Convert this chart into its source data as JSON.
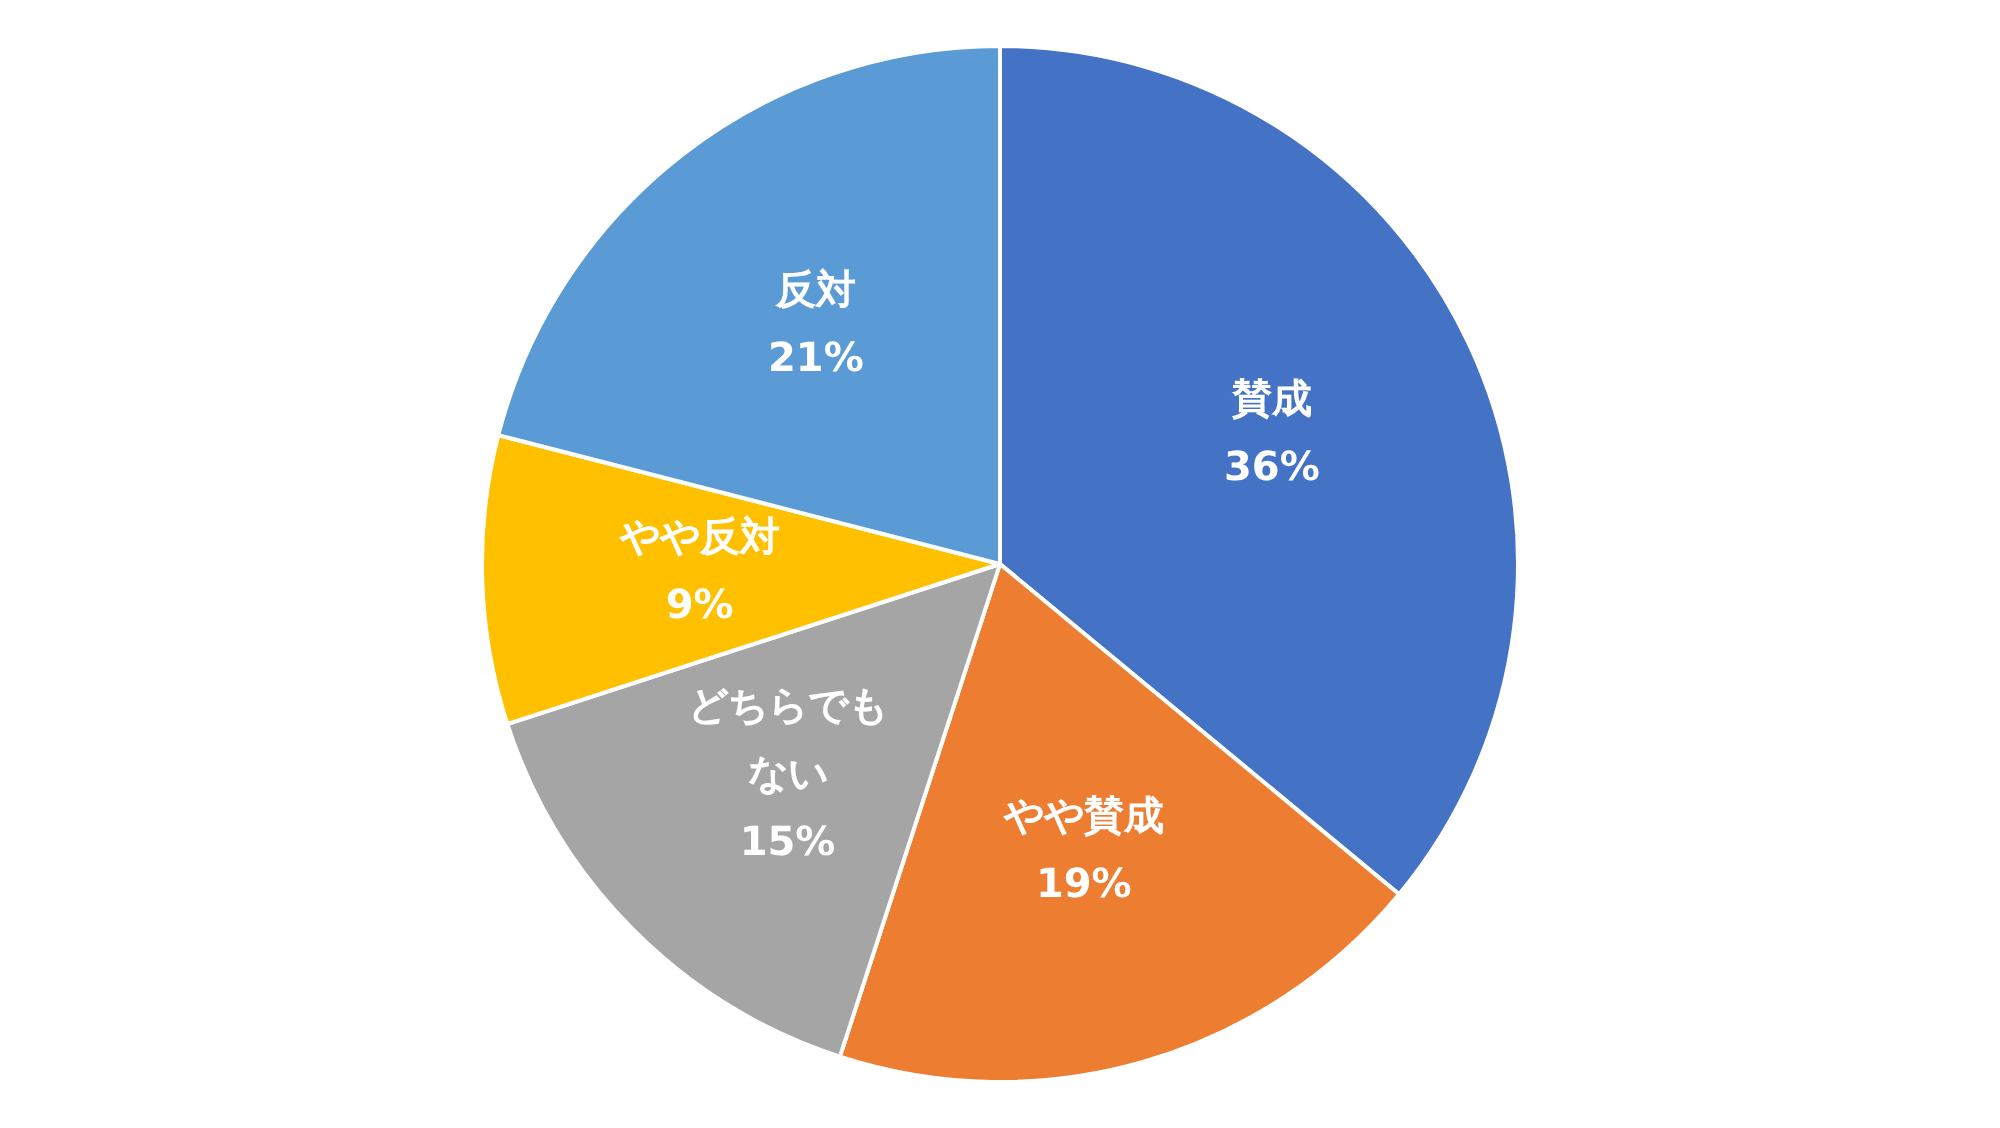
{
  "chart_data": {
    "type": "pie",
    "categories": [
      "賛成",
      "やや賛成",
      "どちらでもない",
      "やや反対",
      "反対"
    ],
    "values": [
      36,
      19,
      15,
      9,
      21
    ],
    "value_labels": [
      "36%",
      "19%",
      "15%",
      "9%",
      "21%"
    ],
    "colors": [
      "#4472c4",
      "#ed7d31",
      "#a5a5a5",
      "#ffc000",
      "#5b9bd5"
    ],
    "legend": false
  }
}
